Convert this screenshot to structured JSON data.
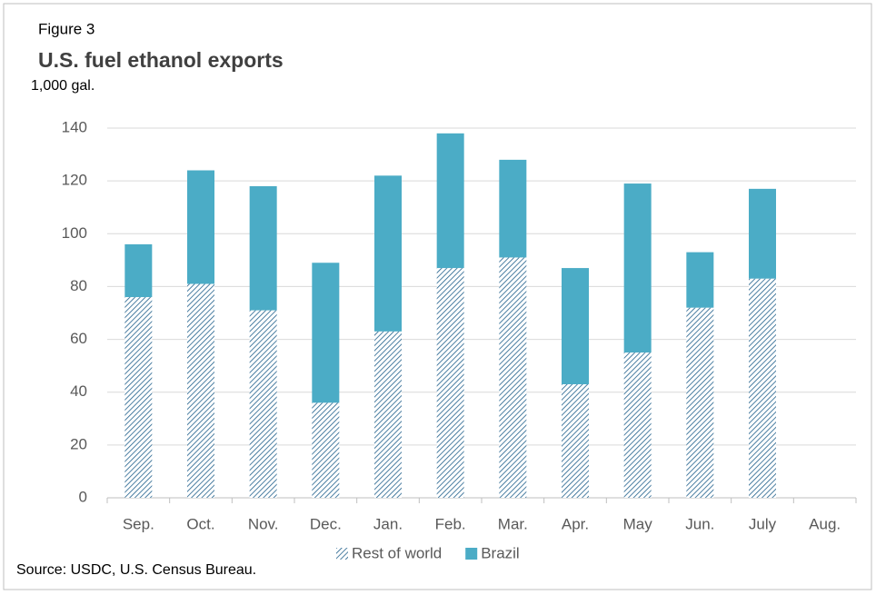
{
  "chart_data": {
    "type": "bar",
    "stacked": true,
    "figure_label": "Figure 3",
    "title": "U.S. fuel ethanol exports",
    "subtitle": "1,000 gal.",
    "source": "Source: USDC, U.S. Census Bureau.",
    "categories": [
      "Sep.",
      "Oct.",
      "Nov.",
      "Dec.",
      "Jan.",
      "Feb.",
      "Mar.",
      "Apr.",
      "May",
      "Jun.",
      "July",
      "Aug."
    ],
    "series": [
      {
        "name": "Rest of world",
        "color": "#1f5f8b",
        "hatch": true,
        "values": [
          76,
          81,
          71,
          36,
          63,
          87,
          91,
          43,
          55,
          72,
          83,
          null
        ]
      },
      {
        "name": "Brazil",
        "color": "#4bacc6",
        "hatch": false,
        "values": [
          20,
          43,
          47,
          53,
          59,
          51,
          37,
          44,
          64,
          21,
          34,
          null
        ]
      }
    ],
    "ylim": [
      0,
      140
    ],
    "yticks": [
      0,
      20,
      40,
      60,
      80,
      100,
      120,
      140
    ],
    "grid": true,
    "legend": "bottom"
  }
}
